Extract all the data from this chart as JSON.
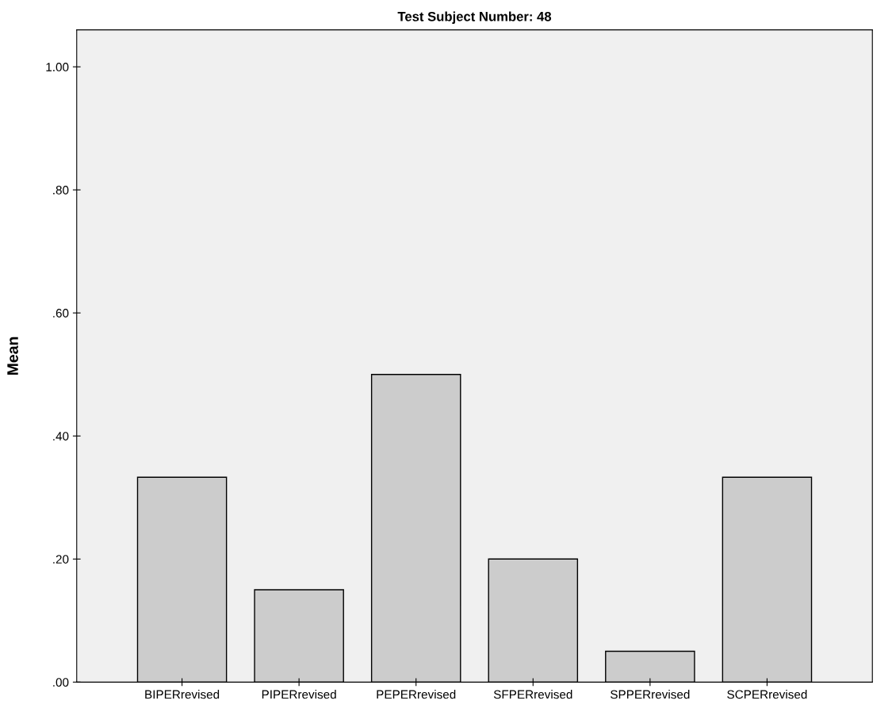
{
  "chart_data": {
    "type": "bar",
    "title": "Test Subject Number: 48",
    "ylabel": "Mean",
    "categories": [
      "BIPERrevised",
      "PIPERrevised",
      "PEPERrevised",
      "SFPERrevised",
      "SPPERrevised",
      "SCPERrevised"
    ],
    "values": [
      0.333,
      0.15,
      0.5,
      0.2,
      0.05,
      0.333
    ],
    "color": "#cccccc",
    "ylim": [
      0,
      1.06
    ],
    "yticks": [
      {
        "value": 0,
        "label": ".00"
      },
      {
        "value": 0.2,
        "label": ".20"
      },
      {
        "value": 0.4,
        "label": ".40"
      },
      {
        "value": 0.6,
        "label": ".60"
      },
      {
        "value": 0.8,
        "label": ".80"
      },
      {
        "value": 1.0,
        "label": "1.00"
      }
    ],
    "grid": false
  }
}
